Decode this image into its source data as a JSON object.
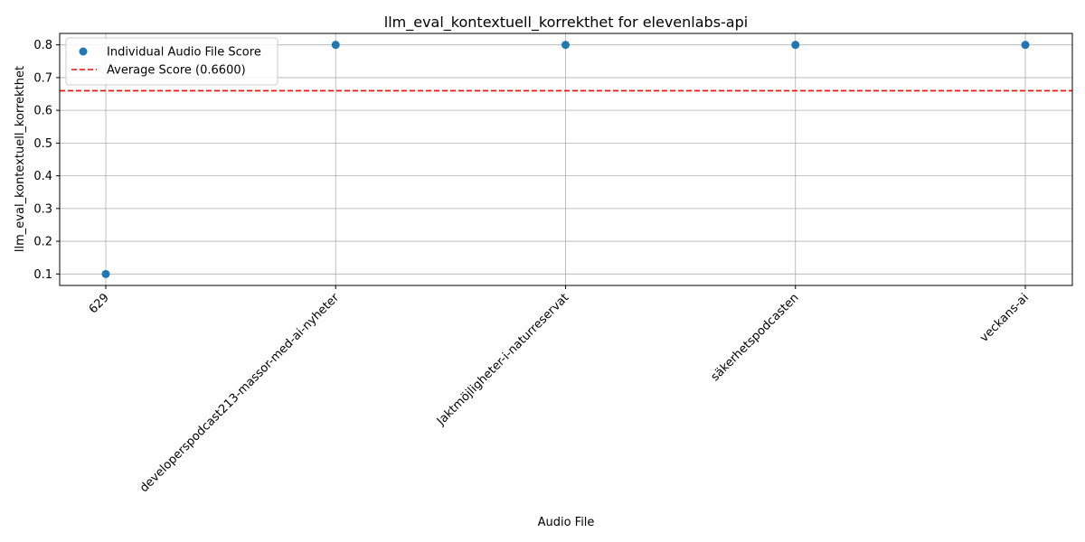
{
  "chart_data": {
    "type": "scatter",
    "title": "llm_eval_kontextuell_korrekthet for elevenlabs-api",
    "xlabel": "Audio File",
    "ylabel": "llm_eval_kontextuell_korrekthet",
    "categories": [
      "629",
      "developerspodcast213-massor-med-ai-nyheter",
      "Jaktmöjligheter-i-naturreservat",
      "säkerhetspodcasten",
      "veckans-ai"
    ],
    "series": [
      {
        "name": "Individual Audio File Score",
        "values": [
          0.1,
          0.8,
          0.8,
          0.8,
          0.8
        ],
        "color": "#1f77b4"
      }
    ],
    "average": {
      "label": "Average Score (0.6600)",
      "value": 0.66,
      "color": "#ff0000",
      "style": "dashed"
    },
    "ylim": [
      0.065,
      0.835
    ],
    "yticks": [
      "0.1",
      "0.2",
      "0.3",
      "0.4",
      "0.5",
      "0.6",
      "0.7",
      "0.8"
    ],
    "grid": true,
    "legend_position": "top-left"
  }
}
